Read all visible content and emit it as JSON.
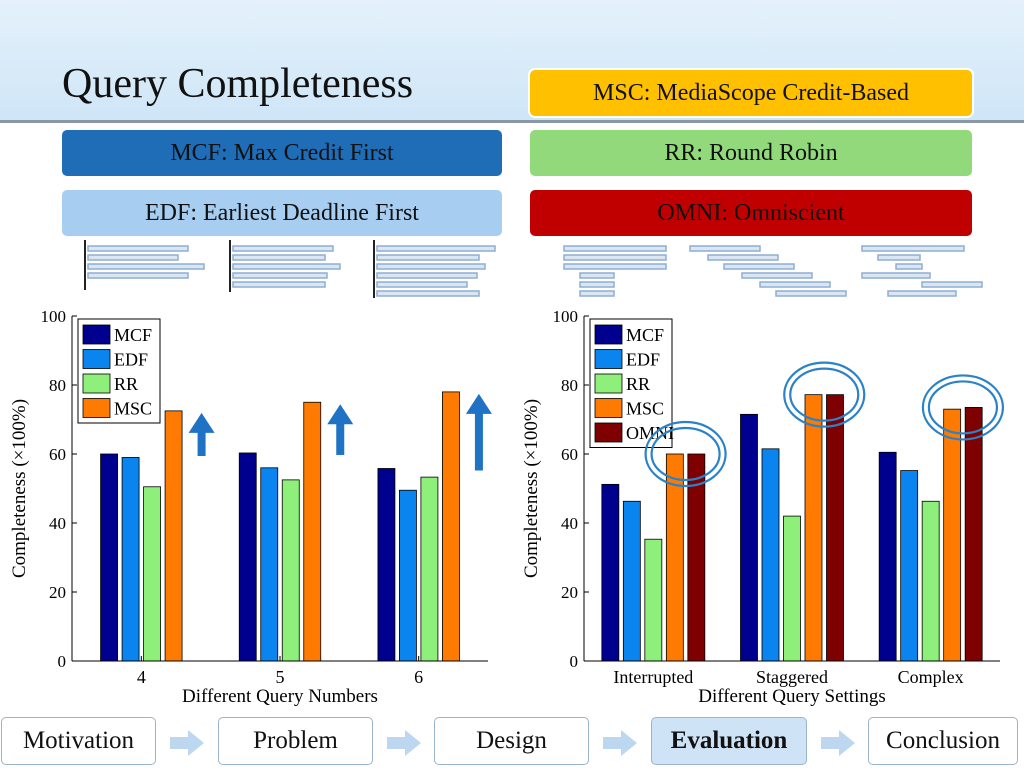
{
  "slide": {
    "title": "Query Completeness",
    "labels": {
      "msc": "MSC: MediaScope Credit-Based",
      "mcf": "MCF: Max Credit First",
      "rr": "RR: Round Robin",
      "edf": "EDF: Earliest Deadline First",
      "omni": "OMNI: Omniscient"
    }
  },
  "nav": {
    "items": [
      "Motivation",
      "Problem",
      "Design",
      "Evaluation",
      "Conclusion"
    ],
    "active": "Evaluation"
  },
  "colors": {
    "MCF": "#00008f",
    "EDF": "#0a84ee",
    "RR": "#8ef07a",
    "MSC": "#ff7a00",
    "OMNI": "#7f0000",
    "arrow": "#1f72c4",
    "circle": "#2b82c8"
  },
  "chart_data": [
    {
      "type": "bar",
      "categories": [
        "4",
        "5",
        "6"
      ],
      "series": [
        {
          "name": "MCF",
          "values": [
            60,
            60.3,
            55.8
          ]
        },
        {
          "name": "EDF",
          "values": [
            59,
            56,
            49.5
          ]
        },
        {
          "name": "RR",
          "values": [
            50.5,
            52.5,
            53.3
          ]
        },
        {
          "name": "MSC",
          "values": [
            72.5,
            75,
            78
          ]
        }
      ],
      "xlabel": "Different Query Numbers",
      "ylabel": "Completeness (×100%)",
      "ylim": [
        0,
        100
      ],
      "yticks": [
        0,
        20,
        40,
        60,
        80,
        100
      ],
      "legend": "top-left",
      "annotations": [
        "up-arrow",
        "up-arrow",
        "up-arrow"
      ]
    },
    {
      "type": "bar",
      "categories": [
        "Interrupted",
        "Staggered",
        "Complex"
      ],
      "series": [
        {
          "name": "MCF",
          "values": [
            51.2,
            71.5,
            60.5
          ]
        },
        {
          "name": "EDF",
          "values": [
            46.3,
            61.5,
            55.2
          ]
        },
        {
          "name": "RR",
          "values": [
            35.3,
            42,
            46.3
          ]
        },
        {
          "name": "MSC",
          "values": [
            60,
            77.2,
            73
          ]
        },
        {
          "name": "OMNI",
          "values": [
            60,
            77.2,
            73.5
          ]
        }
      ],
      "xlabel": "Different Query Settings",
      "ylabel": "Completeness (×100%)",
      "ylim": [
        0,
        100
      ],
      "yticks": [
        0,
        20,
        40,
        60,
        80,
        100
      ],
      "legend": "top-left",
      "annotations": [
        "circle",
        "circle",
        "circle"
      ]
    }
  ]
}
